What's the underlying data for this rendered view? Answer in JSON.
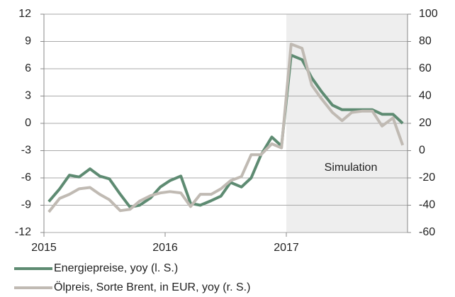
{
  "chart_data": {
    "type": "line",
    "x": [
      2015.04,
      2015.13,
      2015.21,
      2015.29,
      2015.38,
      2015.46,
      2015.54,
      2015.63,
      2015.71,
      2015.79,
      2015.88,
      2015.96,
      2016.04,
      2016.13,
      2016.21,
      2016.29,
      2016.38,
      2016.46,
      2016.54,
      2016.63,
      2016.71,
      2016.79,
      2016.88,
      2016.96,
      2017.04,
      2017.13,
      2017.21,
      2017.29,
      2017.38,
      2017.46,
      2017.54,
      2017.63,
      2017.71,
      2017.79,
      2017.88,
      2017.96
    ],
    "series": [
      {
        "name": "Energiepreise, yoy (l. S.)",
        "color": "#5e8b72",
        "axis": "y",
        "values": [
          -8.6,
          -7.2,
          -5.7,
          -5.9,
          -5.0,
          -5.8,
          -6.1,
          -7.8,
          -9.2,
          -9.0,
          -8.2,
          -7.0,
          -6.3,
          -5.8,
          -8.8,
          -9.0,
          -8.5,
          -8.0,
          -6.5,
          -7.0,
          -6.0,
          -3.5,
          -1.5,
          -2.5,
          7.5,
          7.0,
          5.0,
          3.5,
          2.0,
          1.5,
          1.5,
          1.5,
          1.5,
          1.0,
          1.0,
          0.0
        ]
      },
      {
        "name": "Ölpreis, Sorte Brent, in EUR, yoy (r. S.)",
        "color": "#c0bab3",
        "axis": "y2",
        "values": [
          -45,
          -35,
          -32,
          -28,
          -27,
          -32,
          -36,
          -44,
          -43,
          -37,
          -33,
          -31,
          -30,
          -31,
          -41,
          -32,
          -32,
          -28,
          -22,
          -19,
          -3,
          -3,
          5,
          2,
          78,
          75,
          48,
          38,
          28,
          22,
          28,
          29,
          29,
          18,
          24,
          4
        ]
      }
    ],
    "xlim": [
      2015,
      2018
    ],
    "xticks": [
      2015,
      2016,
      2017
    ],
    "ylim": [
      -12,
      12
    ],
    "yticks": [
      -12,
      -9,
      -6,
      -3,
      0,
      3,
      6,
      9,
      12
    ],
    "y2lim": [
      -60,
      100
    ],
    "y2ticks": [
      -60,
      -40,
      -20,
      0,
      20,
      40,
      60,
      80,
      100
    ],
    "shade": [
      2017,
      2018
    ],
    "annotation": "Simulation",
    "grid": true
  }
}
